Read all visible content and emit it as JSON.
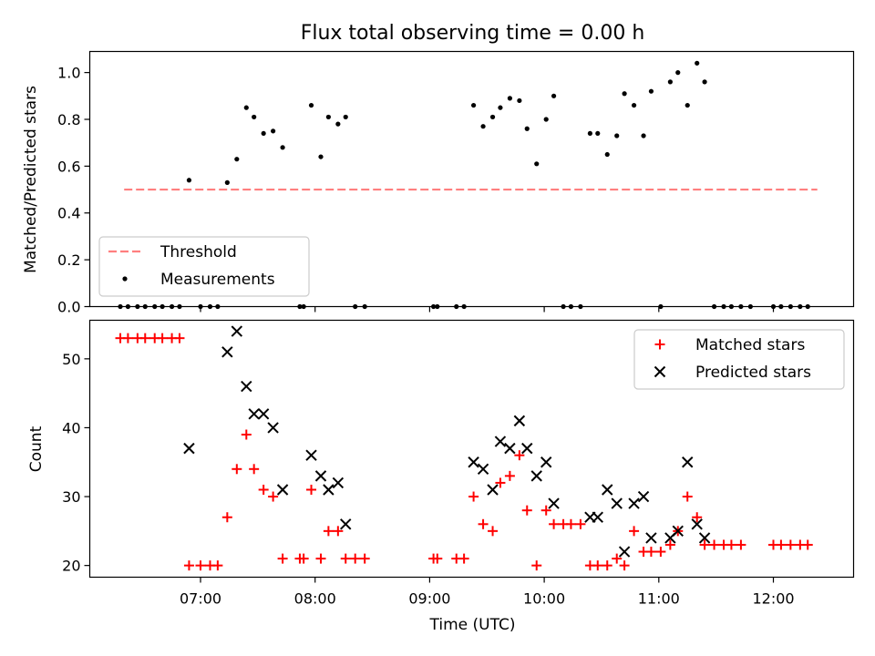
{
  "chart_data": [
    {
      "type": "scatter",
      "title": "Flux total observing time = 0.00 h",
      "xlabel": "",
      "ylabel": "Matched/Predicted stars",
      "xlim": [
        "06:02",
        "12:42"
      ],
      "ylim": [
        0,
        1.09
      ],
      "yticks": [
        0.0,
        0.2,
        0.4,
        0.6,
        0.8,
        1.0
      ],
      "ytick_labels": [
        "0.0",
        "0.2",
        "0.4",
        "0.6",
        "0.8",
        "1.0"
      ],
      "xticks": [
        "07:00",
        "08:00",
        "09:00",
        "10:00",
        "11:00",
        "12:00"
      ],
      "xtick_labels": [
        "",
        "",
        "",
        "",
        "",
        ""
      ],
      "grid": false,
      "legend_position": "lower-left",
      "threshold": {
        "name": "Threshold",
        "value": 0.5,
        "x_start": "06:20",
        "x_end": "12:23",
        "color": "#ff7f7f",
        "style": "dashed"
      },
      "series": [
        {
          "name": "Measurements",
          "marker": "dot",
          "color": "#000000",
          "points": [
            [
              "06:18",
              0
            ],
            [
              "06:22",
              0
            ],
            [
              "06:27",
              0
            ],
            [
              "06:31",
              0
            ],
            [
              "06:36",
              0
            ],
            [
              "06:40",
              0
            ],
            [
              "06:45",
              0
            ],
            [
              "06:49",
              0
            ],
            [
              "06:54",
              0.54
            ],
            [
              "07:00",
              0
            ],
            [
              "07:05",
              0
            ],
            [
              "07:09",
              0
            ],
            [
              "07:14",
              0.53
            ],
            [
              "07:19",
              0.63
            ],
            [
              "07:24",
              0.85
            ],
            [
              "07:28",
              0.81
            ],
            [
              "07:33",
              0.74
            ],
            [
              "07:38",
              0.75
            ],
            [
              "07:43",
              0.68
            ],
            [
              "07:52",
              0
            ],
            [
              "07:54",
              0
            ],
            [
              "07:58",
              0.86
            ],
            [
              "08:03",
              0.64
            ],
            [
              "08:07",
              0.81
            ],
            [
              "08:12",
              0.78
            ],
            [
              "08:16",
              0.81
            ],
            [
              "08:21",
              0
            ],
            [
              "08:26",
              0
            ],
            [
              "09:02",
              0
            ],
            [
              "09:04",
              0
            ],
            [
              "09:14",
              0
            ],
            [
              "09:18",
              0
            ],
            [
              "09:23",
              0.86
            ],
            [
              "09:28",
              0.77
            ],
            [
              "09:33",
              0.81
            ],
            [
              "09:37",
              0.85
            ],
            [
              "09:42",
              0.89
            ],
            [
              "09:47",
              0.88
            ],
            [
              "09:51",
              0.76
            ],
            [
              "09:56",
              0.61
            ],
            [
              "10:01",
              0.8
            ],
            [
              "10:05",
              0.9
            ],
            [
              "10:10",
              0
            ],
            [
              "10:14",
              0
            ],
            [
              "10:19",
              0
            ],
            [
              "10:24",
              0.74
            ],
            [
              "10:28",
              0.74
            ],
            [
              "10:33",
              0.65
            ],
            [
              "10:38",
              0.73
            ],
            [
              "10:42",
              0.91
            ],
            [
              "10:47",
              0.86
            ],
            [
              "10:52",
              0.73
            ],
            [
              "10:56",
              0.92
            ],
            [
              "11:01",
              0
            ],
            [
              "11:06",
              0.96
            ],
            [
              "11:10",
              1.0
            ],
            [
              "11:15",
              0.86
            ],
            [
              "11:20",
              1.04
            ],
            [
              "11:24",
              0.96
            ],
            [
              "11:29",
              0
            ],
            [
              "11:34",
              0
            ],
            [
              "11:38",
              0
            ],
            [
              "11:43",
              0
            ],
            [
              "11:48",
              0
            ],
            [
              "12:00",
              0
            ],
            [
              "12:04",
              0
            ],
            [
              "12:09",
              0
            ],
            [
              "12:14",
              0
            ],
            [
              "12:18",
              0
            ]
          ]
        }
      ],
      "legend": [
        {
          "label": "Threshold",
          "kind": "dashed-line",
          "color": "#ff7f7f"
        },
        {
          "label": "Measurements",
          "kind": "dot",
          "color": "#000000"
        }
      ]
    },
    {
      "type": "scatter",
      "title": "",
      "xlabel": "Time (UTC)",
      "ylabel": "Count",
      "xlim": [
        "06:02",
        "12:42"
      ],
      "ylim": [
        18.3,
        55.6
      ],
      "yticks": [
        20,
        30,
        40,
        50
      ],
      "ytick_labels": [
        "20",
        "30",
        "40",
        "50"
      ],
      "xticks": [
        "07:00",
        "08:00",
        "09:00",
        "10:00",
        "11:00",
        "12:00"
      ],
      "xtick_labels": [
        "07:00",
        "08:00",
        "09:00",
        "10:00",
        "11:00",
        "12:00"
      ],
      "grid": false,
      "legend_position": "upper-right",
      "series": [
        {
          "name": "Matched stars",
          "marker": "plus",
          "color": "#ff0000",
          "points": [
            [
              "06:18",
              53
            ],
            [
              "06:22",
              53
            ],
            [
              "06:27",
              53
            ],
            [
              "06:31",
              53
            ],
            [
              "06:36",
              53
            ],
            [
              "06:40",
              53
            ],
            [
              "06:45",
              53
            ],
            [
              "06:49",
              53
            ],
            [
              "06:54",
              20
            ],
            [
              "07:00",
              20
            ],
            [
              "07:05",
              20
            ],
            [
              "07:09",
              20
            ],
            [
              "07:14",
              27
            ],
            [
              "07:19",
              34
            ],
            [
              "07:24",
              39
            ],
            [
              "07:28",
              34
            ],
            [
              "07:33",
              31
            ],
            [
              "07:38",
              30
            ],
            [
              "07:43",
              21
            ],
            [
              "07:52",
              21
            ],
            [
              "07:54",
              21
            ],
            [
              "07:58",
              31
            ],
            [
              "08:03",
              21
            ],
            [
              "08:07",
              25
            ],
            [
              "08:12",
              25
            ],
            [
              "08:16",
              21
            ],
            [
              "08:21",
              21
            ],
            [
              "08:26",
              21
            ],
            [
              "09:02",
              21
            ],
            [
              "09:04",
              21
            ],
            [
              "09:14",
              21
            ],
            [
              "09:18",
              21
            ],
            [
              "09:23",
              30
            ],
            [
              "09:28",
              26
            ],
            [
              "09:33",
              25
            ],
            [
              "09:37",
              32
            ],
            [
              "09:42",
              33
            ],
            [
              "09:47",
              36
            ],
            [
              "09:51",
              28
            ],
            [
              "09:56",
              20
            ],
            [
              "10:01",
              28
            ],
            [
              "10:05",
              26
            ],
            [
              "10:10",
              26
            ],
            [
              "10:14",
              26
            ],
            [
              "10:19",
              26
            ],
            [
              "10:24",
              20
            ],
            [
              "10:28",
              20
            ],
            [
              "10:33",
              20
            ],
            [
              "10:38",
              21
            ],
            [
              "10:42",
              20
            ],
            [
              "10:47",
              25
            ],
            [
              "10:52",
              22
            ],
            [
              "10:56",
              22
            ],
            [
              "11:01",
              22
            ],
            [
              "11:06",
              23
            ],
            [
              "11:10",
              25
            ],
            [
              "11:15",
              30
            ],
            [
              "11:20",
              27
            ],
            [
              "11:24",
              23
            ],
            [
              "11:29",
              23
            ],
            [
              "11:34",
              23
            ],
            [
              "11:38",
              23
            ],
            [
              "11:43",
              23
            ],
            [
              "12:00",
              23
            ],
            [
              "12:04",
              23
            ],
            [
              "12:09",
              23
            ],
            [
              "12:14",
              23
            ],
            [
              "12:18",
              23
            ]
          ]
        },
        {
          "name": "Predicted stars",
          "marker": "x",
          "color": "#000000",
          "points": [
            [
              "06:54",
              37
            ],
            [
              "07:14",
              51
            ],
            [
              "07:19",
              54
            ],
            [
              "07:24",
              46
            ],
            [
              "07:28",
              42
            ],
            [
              "07:33",
              42
            ],
            [
              "07:38",
              40
            ],
            [
              "07:43",
              31
            ],
            [
              "07:58",
              36
            ],
            [
              "08:03",
              33
            ],
            [
              "08:07",
              31
            ],
            [
              "08:12",
              32
            ],
            [
              "08:16",
              26
            ],
            [
              "09:23",
              35
            ],
            [
              "09:28",
              34
            ],
            [
              "09:33",
              31
            ],
            [
              "09:37",
              38
            ],
            [
              "09:42",
              37
            ],
            [
              "09:47",
              41
            ],
            [
              "09:51",
              37
            ],
            [
              "09:56",
              33
            ],
            [
              "10:01",
              35
            ],
            [
              "10:05",
              29
            ],
            [
              "10:24",
              27
            ],
            [
              "10:28",
              27
            ],
            [
              "10:33",
              31
            ],
            [
              "10:38",
              29
            ],
            [
              "10:42",
              22
            ],
            [
              "10:47",
              29
            ],
            [
              "10:52",
              30
            ],
            [
              "10:56",
              24
            ],
            [
              "11:06",
              24
            ],
            [
              "11:10",
              25
            ],
            [
              "11:15",
              35
            ],
            [
              "11:20",
              26
            ],
            [
              "11:24",
              24
            ]
          ]
        }
      ],
      "legend": [
        {
          "label": "Matched stars",
          "kind": "plus",
          "color": "#ff0000"
        },
        {
          "label": "Predicted stars",
          "kind": "x",
          "color": "#000000"
        }
      ]
    }
  ]
}
